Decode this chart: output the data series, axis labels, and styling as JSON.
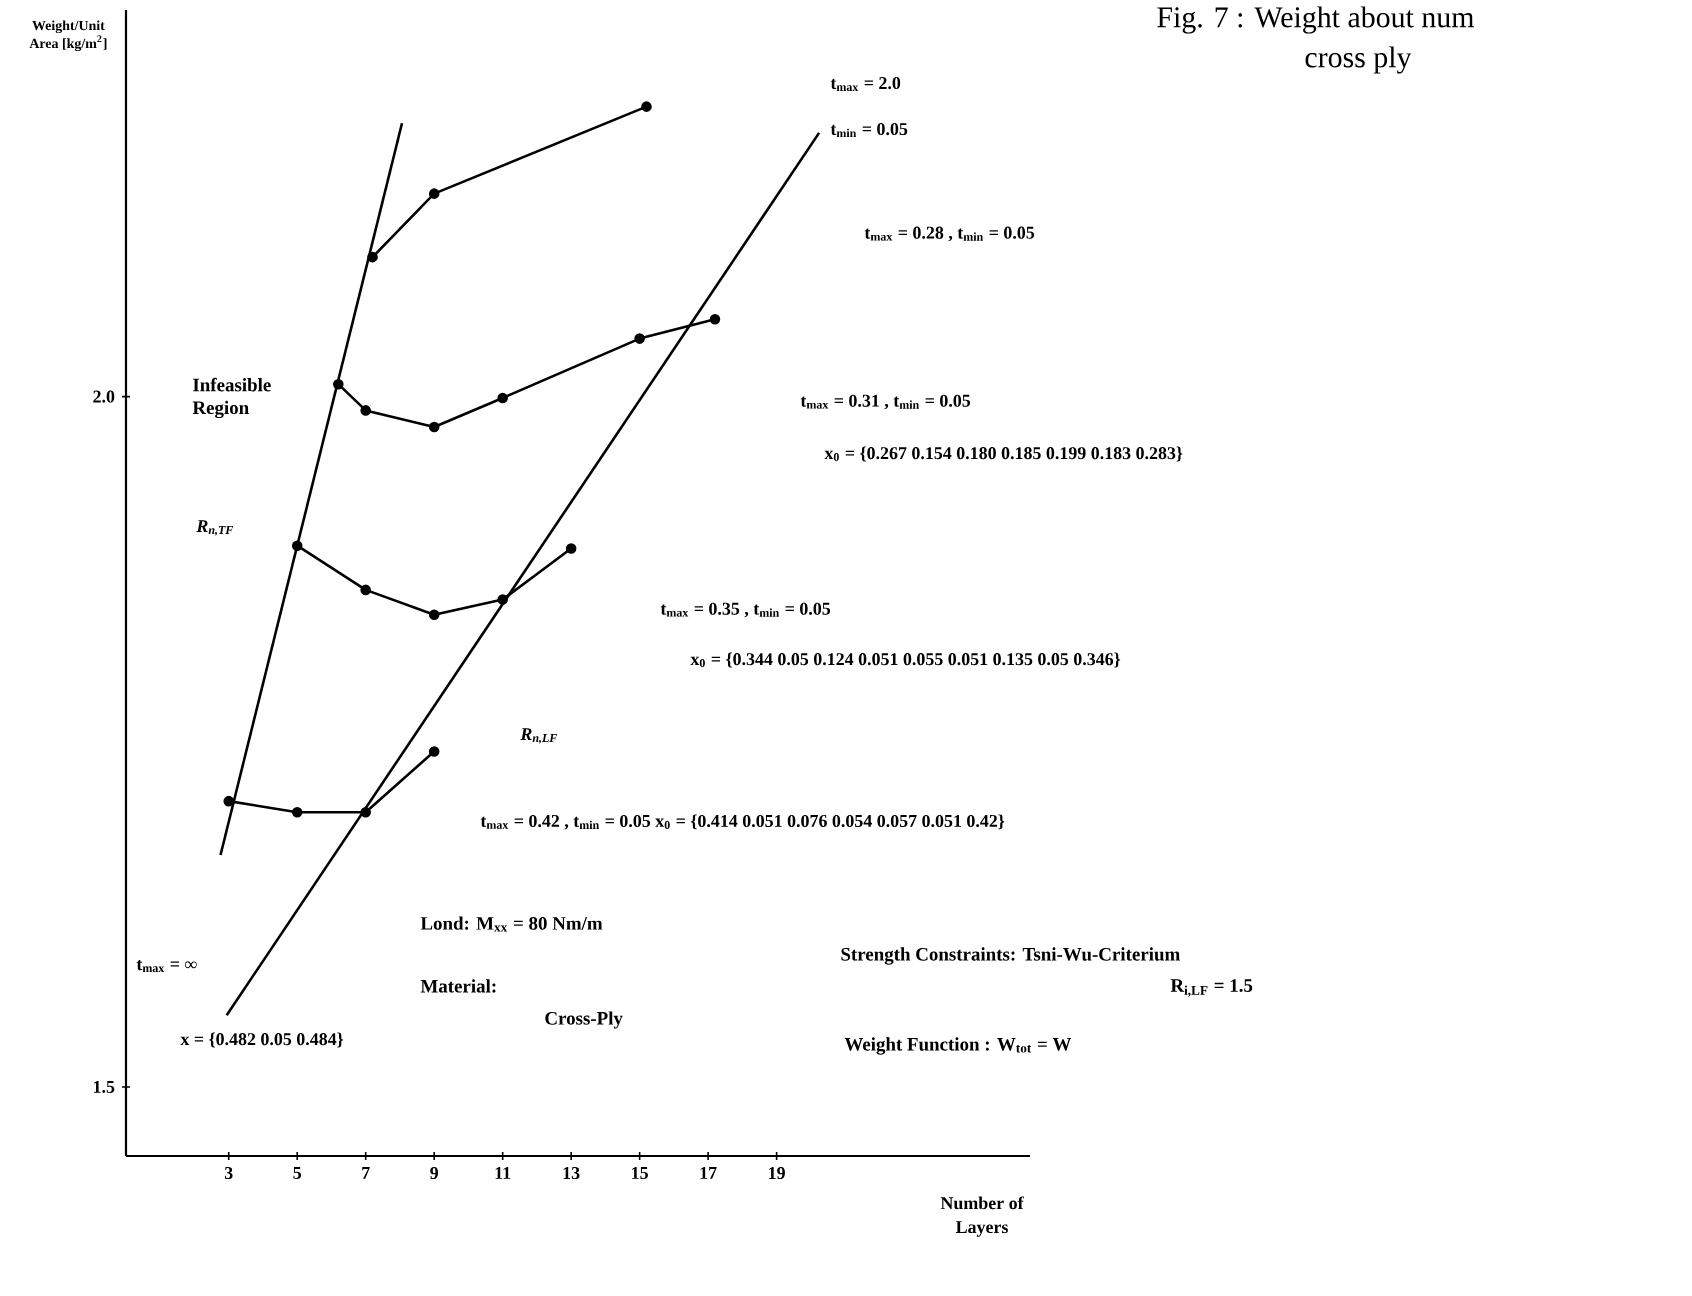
{
  "chart_data": {
    "type": "line",
    "xlabel": "Number of Layers",
    "ylabel": "Weight/Unit Area [kg/m$^{2}$]",
    "xlim": [
      0,
      26.4
    ],
    "ylim": [
      1.45,
      2.28
    ],
    "xticks": [
      3,
      5,
      7,
      9,
      11,
      13,
      15,
      17,
      19
    ],
    "yticks": [
      {
        "value": 1.5,
        "label": "1.5"
      },
      {
        "value": 2.0,
        "label": "2.0"
      }
    ],
    "marker": "circle",
    "line_style": "solid",
    "series": [
      {
        "color": "#000000",
        "x": [
          7.2,
          9,
          15.2
        ],
        "values": [
          2.101,
          2.147,
          2.21
        ]
      },
      {
        "color": "#000000",
        "x": [
          6.2,
          7,
          9,
          11,
          15,
          17.2
        ],
        "values": [
          2.009,
          1.99,
          1.978,
          1.999,
          2.042,
          2.056
        ]
      },
      {
        "color": "#000000",
        "x": [
          5,
          7,
          9,
          11,
          13
        ],
        "values": [
          1.892,
          1.86,
          1.842,
          1.853,
          1.89
        ]
      },
      {
        "color": "#000000",
        "x": [
          3,
          5,
          7,
          9
        ],
        "values": [
          1.707,
          1.699,
          1.699,
          1.743
        ]
      },
      {
        "color": "#000000",
        "marker": "none",
        "x": [
          2.76,
          8.06
        ],
        "values": [
          1.668,
          2.198
        ]
      },
      {
        "color": "#000000",
        "marker": "none",
        "x": [
          2.94,
          20.24
        ],
        "values": [
          1.552,
          2.191
        ]
      }
    ],
    "annotations": [
      "Fig. 7 : Weight about num",
      "cross ply",
      "t$_{max}$ = 2.0",
      "t$_{min}$ = 0.05",
      "t$_{max}$ = 0.28 ,     t$_{min}$ = 0.05",
      "Infeasible Region",
      "t$_{max}$ = 0.31 ,     t$_{min}$ = 0.05",
      "x$_{0}$ = {0.267 0.154 0.180 0.185 0.199 0.183 0.283}",
      "R$_{n,TF}$",
      "t$_{max}$ = 0.35 ,     t$_{min}$ = 0.05",
      "x$_{0}$ = {0.344 0.05 0.124 0.051 0.055 0.051 0.135 0.05 0.346}",
      "R$_{n,LF}$",
      "t$_{max}$ = 0.42 ,  t$_{min}$ = 0.05  x$_{0}$ = {0.414 0.051 0.076 0.054 0.057 0.051 0.42}",
      "t$_{max}$ = ∞",
      "Lond: M$_{xx}$ = 80 Nm/m",
      "Material:",
      "Cross-Ply",
      "x = {0.482 0.05 0.484}",
      "Strength Constraints: Tsni-Wu-Criterium",
      "R$_{i,LF}$ = 1.5",
      "Weight Function : W$_{tot}$ = W"
    ]
  }
}
